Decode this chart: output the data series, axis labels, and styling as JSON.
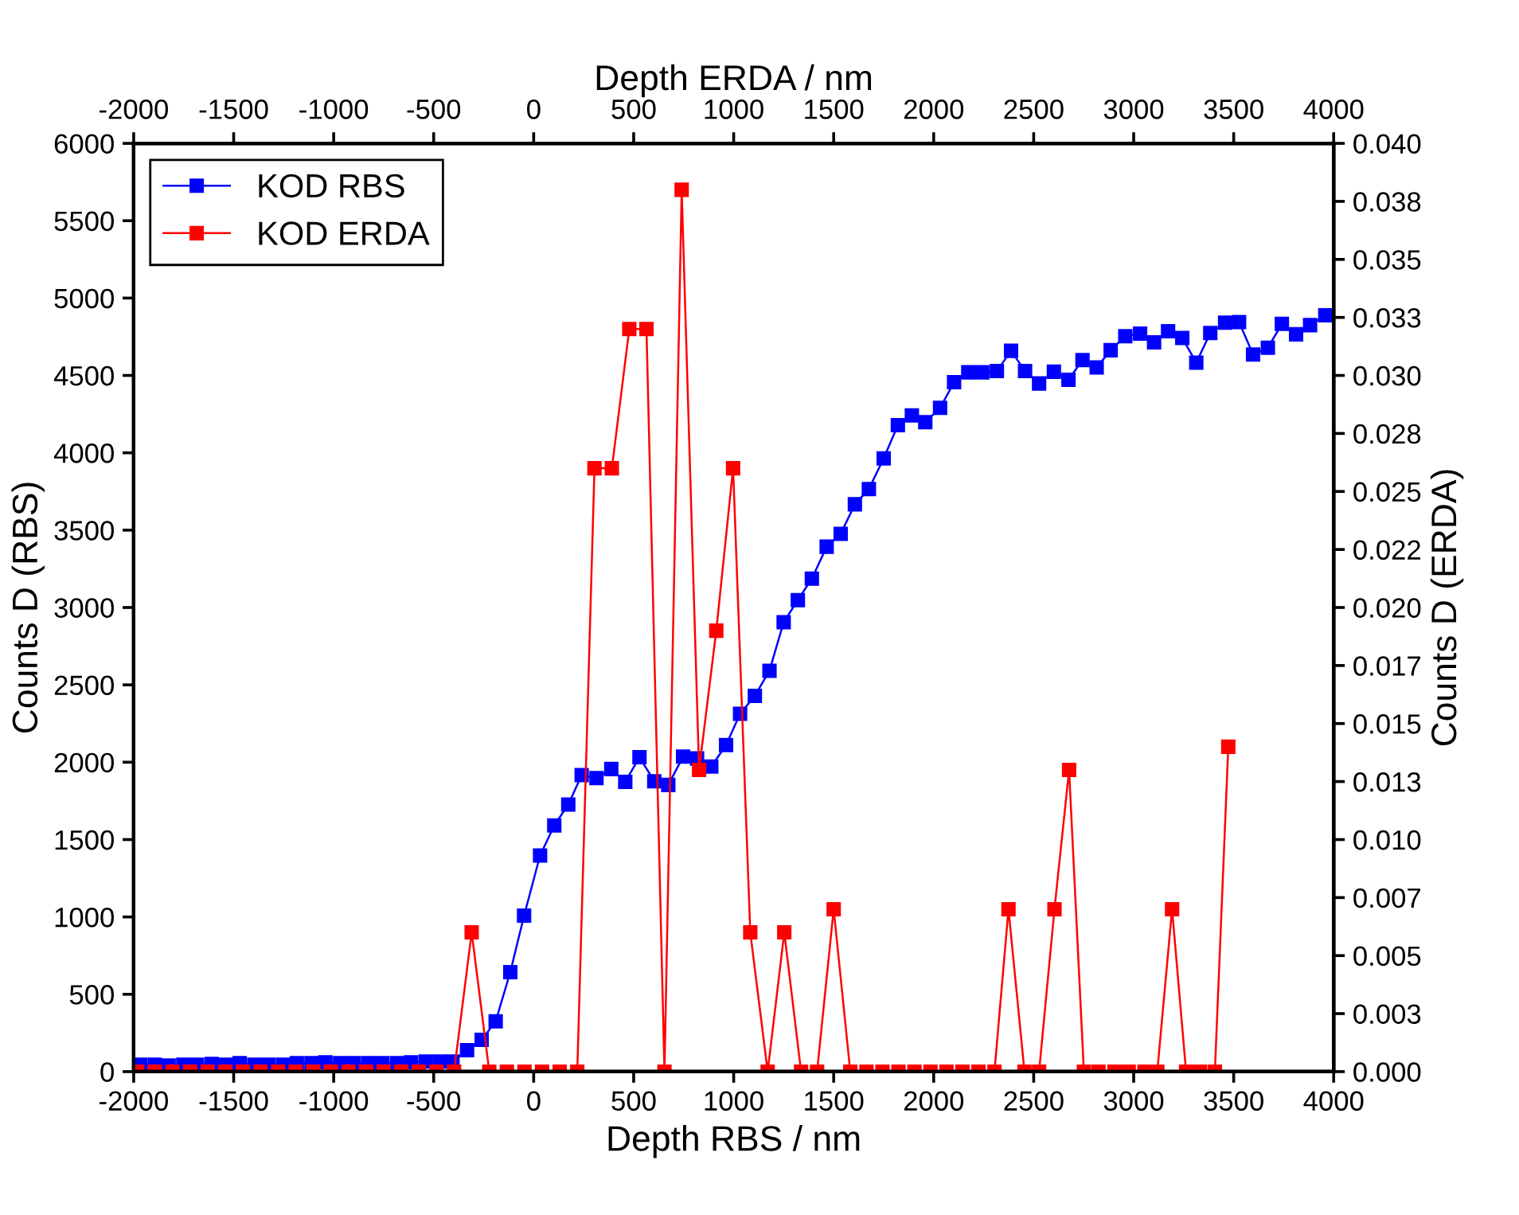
{
  "chart_data": {
    "type": "line",
    "xlabel": "Depth RBS / nm",
    "ylabel": "Counts D (RBS)",
    "y2label": "Counts D (ERDA)",
    "x2label": "Depth ERDA / nm",
    "xlim": [
      -2000,
      4000
    ],
    "xticks": [
      -2000,
      -1500,
      -1000,
      -500,
      0,
      500,
      1000,
      1500,
      2000,
      2500,
      3000,
      3500,
      4000
    ],
    "x2lim": [
      -2000,
      4000
    ],
    "x2ticks": [
      -2000,
      -1500,
      -1000,
      -500,
      0,
      500,
      1000,
      1500,
      2000,
      2500,
      3000,
      3500,
      4000
    ],
    "ylim": [
      0,
      6000
    ],
    "yticks": [
      0,
      500,
      1000,
      1500,
      2000,
      2500,
      3000,
      3500,
      4000,
      4500,
      5000,
      5500,
      6000
    ],
    "y2lim": [
      0,
      0.04
    ],
    "y2ticks": [
      {
        "value": 0,
        "label": "0.000"
      },
      {
        "value": 0.0025,
        "label": "0.003"
      },
      {
        "value": 0.005,
        "label": "0.005"
      },
      {
        "value": 0.0075,
        "label": "0.007"
      },
      {
        "value": 0.01,
        "label": "0.010"
      },
      {
        "value": 0.0125,
        "label": "0.013"
      },
      {
        "value": 0.015,
        "label": "0.015"
      },
      {
        "value": 0.0175,
        "label": "0.017"
      },
      {
        "value": 0.02,
        "label": "0.020"
      },
      {
        "value": 0.0225,
        "label": "0.022"
      },
      {
        "value": 0.025,
        "label": "0.025"
      },
      {
        "value": 0.0275,
        "label": "0.028"
      },
      {
        "value": 0.03,
        "label": "0.030"
      },
      {
        "value": 0.0325,
        "label": "0.033"
      },
      {
        "value": 0.035,
        "label": "0.035"
      },
      {
        "value": 0.0375,
        "label": "0.038"
      },
      {
        "value": 0.04,
        "label": "0.040"
      }
    ],
    "marker": "square",
    "line_style": "solid",
    "legend": "top left",
    "series": [
      {
        "name": "KOD RBS",
        "color": "#0000ff",
        "x": [
          -1968,
          -1895,
          -1825,
          -1752,
          -1683,
          -1610,
          -1540,
          -1470,
          -1397,
          -1327,
          -1254,
          -1184,
          -1111,
          -1041,
          -968,
          -898,
          -825,
          -756,
          -683,
          -613,
          -540,
          -470,
          -406,
          -333,
          -260,
          -190,
          -117,
          -48,
          32,
          103,
          173,
          240,
          314,
          388,
          458,
          529,
          603,
          673,
          747,
          817,
          888,
          962,
          1032,
          1106,
          1179,
          1250,
          1321,
          1391,
          1465,
          1535,
          1606,
          1676,
          1750,
          1821,
          1891,
          1958,
          2032,
          2102,
          2173,
          2243,
          2316,
          2387,
          2457,
          2527,
          2601,
          2674,
          2744,
          2815,
          2885,
          2958,
          3032,
          3102,
          3172,
          3243,
          3313,
          3383,
          3457,
          3527,
          3597,
          3671,
          3741,
          3812,
          3882,
          3958
        ],
        "values": [
          45,
          45,
          40,
          45,
          45,
          50,
          45,
          55,
          45,
          45,
          45,
          55,
          55,
          60,
          55,
          55,
          55,
          55,
          55,
          60,
          65,
          65,
          65,
          139,
          206,
          325,
          643,
          1008,
          1397,
          1591,
          1726,
          1917,
          1897,
          1956,
          1873,
          2032,
          1877,
          1853,
          2036,
          2024,
          1972,
          2111,
          2313,
          2429,
          2591,
          2905,
          3048,
          3187,
          3393,
          3476,
          3667,
          3766,
          3964,
          4179,
          4242,
          4198,
          4290,
          4456,
          4520,
          4520,
          4528,
          4659,
          4528,
          4448,
          4524,
          4472,
          4599,
          4552,
          4663,
          4754,
          4770,
          4714,
          4786,
          4742,
          4583,
          4774,
          4841,
          4845,
          4635,
          4679,
          4833,
          4766,
          4825,
          4889
        ]
      },
      {
        "name": "KOD ERDA",
        "color": "#ff0000",
        "axis": "y2",
        "x": [
          -1982,
          -1894,
          -1806,
          -1718,
          -1630,
          -1542,
          -1454,
          -1366,
          -1278,
          -1190,
          -1102,
          -1014,
          -926,
          -838,
          -750,
          -662,
          -574,
          -486,
          -398,
          -310,
          -222,
          -134,
          -46,
          42,
          130,
          218,
          304,
          391,
          478,
          564,
          654,
          740,
          827,
          913,
          997,
          1083,
          1170,
          1253,
          1337,
          1417,
          1500,
          1583,
          1664,
          1744,
          1824,
          1904,
          1984,
          2064,
          2144,
          2224,
          2304,
          2374,
          2454,
          2527,
          2604,
          2677,
          2751,
          2824,
          2904,
          2975,
          3054,
          3118,
          3192,
          3262,
          3332,
          3406,
          3473
        ],
        "values": [
          0,
          0,
          0,
          0,
          0,
          0,
          0,
          0,
          0,
          0,
          0,
          0,
          0,
          0,
          0,
          0,
          0,
          0,
          0,
          0.006,
          0,
          0,
          0,
          0,
          0,
          0,
          0.026,
          0.026,
          0.032,
          0.032,
          0,
          0.038,
          0.013,
          0.019,
          0.026,
          0.006,
          0,
          0.006,
          0,
          0,
          0.007,
          0,
          0,
          0,
          0,
          0,
          0,
          0,
          0,
          0,
          0,
          0.007,
          0,
          0,
          0.007,
          0.013,
          0,
          0,
          0,
          0,
          0,
          0,
          0.007,
          0,
          0,
          0,
          0.014
        ]
      }
    ]
  }
}
